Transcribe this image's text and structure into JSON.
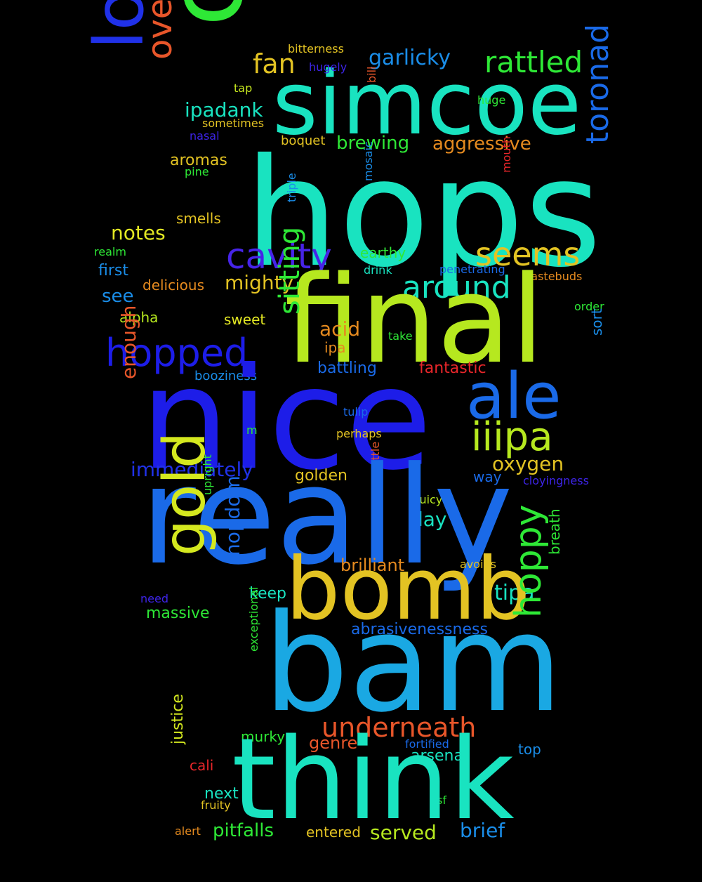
{
  "words": [
    {
      "text": "hops",
      "color": "#19e3c0"
    },
    {
      "text": "simcoe",
      "color": "#19e3c0"
    },
    {
      "text": "citra",
      "color": "#2ee836"
    },
    {
      "text": "looks",
      "color": "#2031e8"
    },
    {
      "text": "overall",
      "color": "#e8562a"
    },
    {
      "text": "fan",
      "color": "#e3c323"
    },
    {
      "text": "rattled",
      "color": "#2ee836"
    },
    {
      "text": "garlicky",
      "color": "#1a8de8"
    },
    {
      "text": "bitterness",
      "color": "#e3c323"
    },
    {
      "text": "hugely",
      "color": "#3d24e8"
    },
    {
      "text": "tap",
      "color": "#c7e81f"
    },
    {
      "text": "bill",
      "color": "#e8562a"
    },
    {
      "text": "huge",
      "color": "#2ee836"
    },
    {
      "text": "sometimes",
      "color": "#e3c323"
    },
    {
      "text": "nasal",
      "color": "#3d24e8"
    },
    {
      "text": "ipadank",
      "color": "#19e3c0"
    },
    {
      "text": "boquet",
      "color": "#e3c323"
    },
    {
      "text": "brewing",
      "color": "#2ee836"
    },
    {
      "text": "aggressive",
      "color": "#e58a1f"
    },
    {
      "text": "aromas",
      "color": "#e3c323"
    },
    {
      "text": "pine",
      "color": "#2ee836"
    },
    {
      "text": "smells",
      "color": "#e3c323"
    },
    {
      "text": "notes",
      "color": "#e3e823"
    },
    {
      "text": "cavity",
      "color": "#4724e8"
    },
    {
      "text": "seems",
      "color": "#e3c323"
    },
    {
      "text": "toronad",
      "color": "#1a6ae8"
    },
    {
      "text": "mosaic",
      "color": "#1a8de8"
    },
    {
      "text": "triple",
      "color": "#1a8de8"
    },
    {
      "text": "mouth",
      "color": "#e8262a"
    },
    {
      "text": "realm",
      "color": "#2ee836"
    },
    {
      "text": "first",
      "color": "#1a8de8"
    },
    {
      "text": "earthy",
      "color": "#2ee836"
    },
    {
      "text": "drink",
      "color": "#19e3c0"
    },
    {
      "text": "penetrating",
      "color": "#1a6ae8"
    },
    {
      "text": "tastebuds",
      "color": "#e58a1f"
    },
    {
      "text": "around",
      "color": "#19e3c0"
    },
    {
      "text": "delicious",
      "color": "#e58a1f"
    },
    {
      "text": "mighty",
      "color": "#e3c323"
    },
    {
      "text": "see",
      "color": "#1a8de8"
    },
    {
      "text": "final",
      "color": "#b6e81f"
    },
    {
      "text": "order",
      "color": "#2ee836"
    },
    {
      "text": "alpha",
      "color": "#b6e81f"
    },
    {
      "text": "sweet",
      "color": "#e3e823"
    },
    {
      "text": "sitting",
      "color": "#2ee836"
    },
    {
      "text": "acid",
      "color": "#e58a1f"
    },
    {
      "text": "take",
      "color": "#2ee836"
    },
    {
      "text": "ipa",
      "color": "#e58a1f"
    },
    {
      "text": "sort",
      "color": "#1a8de8"
    },
    {
      "text": "hopped",
      "color": "#1d1de8"
    },
    {
      "text": "battling",
      "color": "#1a6ae8"
    },
    {
      "text": "fantastic",
      "color": "#e8262a"
    },
    {
      "text": "booziness",
      "color": "#1a8de8"
    },
    {
      "text": "ale",
      "color": "#1a6ae8"
    },
    {
      "text": "enough",
      "color": "#e8562a"
    },
    {
      "text": "nice",
      "color": "#1d1de8"
    },
    {
      "text": "tulip",
      "color": "#1a6ae8"
    },
    {
      "text": "iiipa",
      "color": "#b6e81f"
    },
    {
      "text": "m",
      "color": "#2ee836"
    },
    {
      "text": "perhaps",
      "color": "#e3c323"
    },
    {
      "text": "immediately",
      "color": "#2031e8"
    },
    {
      "text": "oxygen",
      "color": "#e3c323"
    },
    {
      "text": "golden",
      "color": "#e3c323"
    },
    {
      "text": "rattle",
      "color": "#e8562a"
    },
    {
      "text": "way",
      "color": "#1a6ae8"
    },
    {
      "text": "cloyingness",
      "color": "#3d24e8"
    },
    {
      "text": "juicy",
      "color": "#b6e81f"
    },
    {
      "text": "upright",
      "color": "#2ee836"
    },
    {
      "text": "day",
      "color": "#19e3c0"
    },
    {
      "text": "really",
      "color": "#1a6ae8"
    },
    {
      "text": "gold",
      "color": "#d4e81f"
    },
    {
      "text": "brilliant",
      "color": "#e58a1f"
    },
    {
      "text": "avoids",
      "color": "#e3c323"
    },
    {
      "text": "breath",
      "color": "#2ee836"
    },
    {
      "text": "hopdom",
      "color": "#1a6ae8"
    },
    {
      "text": "keep",
      "color": "#19e3c0"
    },
    {
      "text": "tipa",
      "color": "#19e3c0"
    },
    {
      "text": "need",
      "color": "#3d24e8"
    },
    {
      "text": "massive",
      "color": "#2ee836"
    },
    {
      "text": "bomb",
      "color": "#e3c323"
    },
    {
      "text": "hoppy",
      "color": "#2ee836"
    },
    {
      "text": "abrasivenessness",
      "color": "#1a6ae8"
    },
    {
      "text": "bam",
      "color": "#1aa8e3"
    },
    {
      "text": "exceptional",
      "color": "#2ee836"
    },
    {
      "text": "underneath",
      "color": "#e8562a"
    },
    {
      "text": "murky",
      "color": "#2ee836"
    },
    {
      "text": "genre",
      "color": "#e8562a"
    },
    {
      "text": "fortified",
      "color": "#1a6ae8"
    },
    {
      "text": "top",
      "color": "#1a8de8"
    },
    {
      "text": "arsenal",
      "color": "#19e3c0"
    },
    {
      "text": "justice",
      "color": "#d4e81f"
    },
    {
      "text": "cali",
      "color": "#e8262a"
    },
    {
      "text": "next",
      "color": "#19e3c0"
    },
    {
      "text": "fruity",
      "color": "#e3c323"
    },
    {
      "text": "sf",
      "color": "#2ee836"
    },
    {
      "text": "think",
      "color": "#19e3c0"
    },
    {
      "text": "pitfalls",
      "color": "#2ee836"
    },
    {
      "text": "entered",
      "color": "#e3c323"
    },
    {
      "text": "served",
      "color": "#b6e81f"
    },
    {
      "text": "brief",
      "color": "#1a8de8"
    },
    {
      "text": "alert",
      "color": "#e58a1f"
    }
  ]
}
